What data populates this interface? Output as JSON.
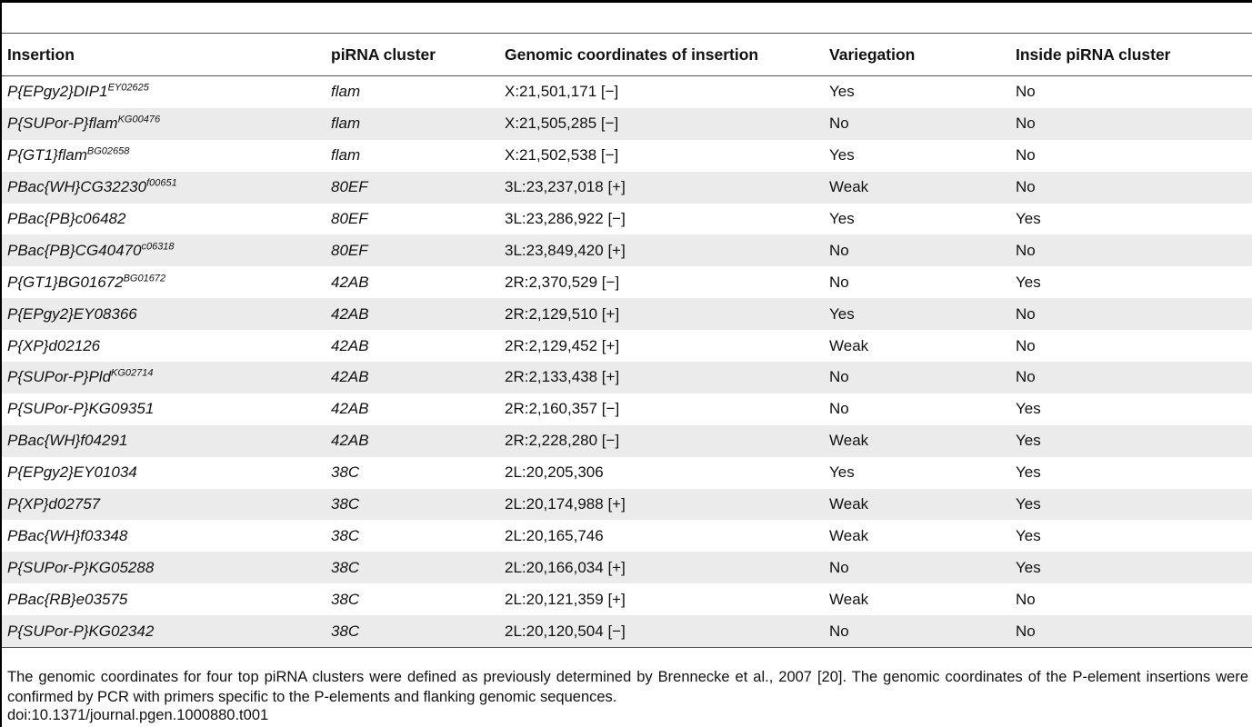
{
  "table": {
    "headers": {
      "insertion": "Insertion",
      "cluster": "piRNA cluster",
      "coords": "Genomic coordinates of insertion",
      "variegation": "Variegation",
      "inside": "Inside piRNA cluster"
    },
    "rows": [
      {
        "insertion": "P{EPgy2}DIP1",
        "sup": "EY02625",
        "cluster": "flam",
        "coords": "X:21,501,171 [−]",
        "variegation": "Yes",
        "inside": "No"
      },
      {
        "insertion": "P{SUPor-P}flam",
        "sup": "KG00476",
        "cluster": "flam",
        "coords": "X:21,505,285 [−]",
        "variegation": "No",
        "inside": "No"
      },
      {
        "insertion": "P{GT1}flam",
        "sup": "BG02658",
        "cluster": "flam",
        "coords": "X:21,502,538 [−]",
        "variegation": "Yes",
        "inside": "No"
      },
      {
        "insertion": "PBac{WH}CG32230",
        "sup": "f00651",
        "cluster": "80EF",
        "coords": "3L:23,237,018 [+]",
        "variegation": "Weak",
        "inside": "No"
      },
      {
        "insertion": "PBac{PB}c06482",
        "sup": "",
        "cluster": "80EF",
        "coords": "3L:23,286,922 [−]",
        "variegation": "Yes",
        "inside": "Yes"
      },
      {
        "insertion": "PBac{PB}CG40470",
        "sup": "c06318",
        "cluster": "80EF",
        "coords": "3L:23,849,420 [+]",
        "variegation": "No",
        "inside": "No"
      },
      {
        "insertion": "P{GT1}BG01672",
        "sup": "BG01672",
        "cluster": "42AB",
        "coords": "2R:2,370,529 [−]",
        "variegation": "No",
        "inside": "Yes"
      },
      {
        "insertion": "P{EPgy2}EY08366",
        "sup": "",
        "cluster": "42AB",
        "coords": "2R:2,129,510 [+]",
        "variegation": "Yes",
        "inside": "No"
      },
      {
        "insertion": "P{XP}d02126",
        "sup": "",
        "cluster": "42AB",
        "coords": "2R:2,129,452 [+]",
        "variegation": "Weak",
        "inside": "No"
      },
      {
        "insertion": "P{SUPor-P}Pld",
        "sup": "KG02714",
        "cluster": "42AB",
        "coords": "2R:2,133,438 [+]",
        "variegation": "No",
        "inside": "No"
      },
      {
        "insertion": "P{SUPor-P}KG09351",
        "sup": "",
        "cluster": "42AB",
        "coords": "2R:2,160,357 [−]",
        "variegation": "No",
        "inside": "Yes"
      },
      {
        "insertion": "PBac{WH}f04291",
        "sup": "",
        "cluster": "42AB",
        "coords": "2R:2,228,280 [−]",
        "variegation": "Weak",
        "inside": "Yes"
      },
      {
        "insertion": "P{EPgy2}EY01034",
        "sup": "",
        "cluster": "38C",
        "coords": "2L:20,205,306",
        "variegation": "Yes",
        "inside": "Yes"
      },
      {
        "insertion": "P{XP}d02757",
        "sup": "",
        "cluster": "38C",
        "coords": "2L:20,174,988 [+]",
        "variegation": "Weak",
        "inside": "Yes"
      },
      {
        "insertion": "PBac{WH}f03348",
        "sup": "",
        "cluster": "38C",
        "coords": "2L:20,165,746",
        "variegation": "Weak",
        "inside": "Yes"
      },
      {
        "insertion": "P{SUPor-P}KG05288",
        "sup": "",
        "cluster": "38C",
        "coords": "2L:20,166,034 [+]",
        "variegation": "No",
        "inside": "Yes"
      },
      {
        "insertion": "PBac{RB}e03575",
        "sup": "",
        "cluster": "38C",
        "coords": "2L:20,121,359 [+]",
        "variegation": "Weak",
        "inside": "No"
      },
      {
        "insertion": "P{SUPor-P}KG02342",
        "sup": "",
        "cluster": "38C",
        "coords": "2L:20,120,504 [−]",
        "variegation": "No",
        "inside": "No"
      }
    ]
  },
  "footnote": "The genomic coordinates for four top piRNA clusters were defined as previously determined by Brennecke et al., 2007 [20]. The genomic coordinates of the P-element insertions were confirmed by PCR with primers specific to the P-elements and flanking genomic sequences.",
  "doi": "doi:10.1371/journal.pgen.1000880.t001"
}
